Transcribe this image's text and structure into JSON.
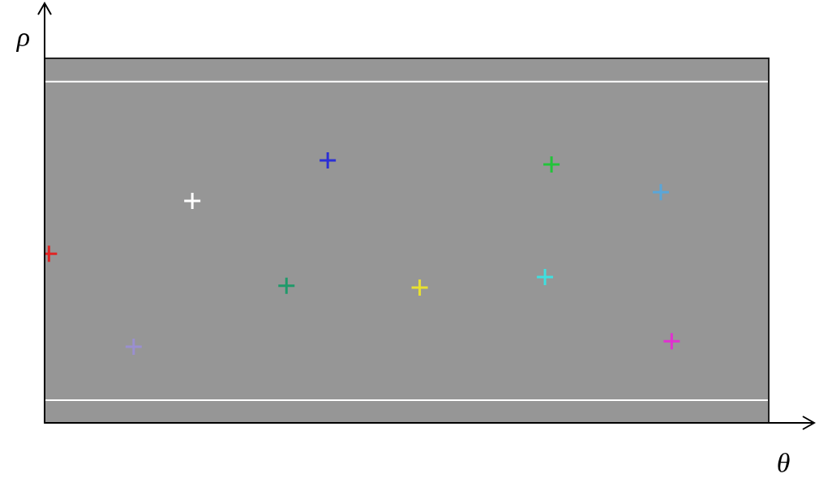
{
  "chart_data": {
    "type": "scatter",
    "x_label": "θ",
    "y_label": "ρ",
    "xlim": [
      0,
      100
    ],
    "ylim": [
      0,
      100
    ],
    "tick_labels": false,
    "grid": false,
    "marker": "cross",
    "points": [
      {
        "x": 39.1,
        "y": 72.0,
        "color": "#2b2fd6"
      },
      {
        "x": 70.0,
        "y": 70.9,
        "color": "#22c43a"
      },
      {
        "x": 20.4,
        "y": 60.9,
        "color": "#ffffff"
      },
      {
        "x": 85.1,
        "y": 63.3,
        "color": "#5aa6d8"
      },
      {
        "x": 0.6,
        "y": 46.4,
        "color": "#e02424"
      },
      {
        "x": 33.4,
        "y": 37.6,
        "color": "#1f9a6a"
      },
      {
        "x": 51.8,
        "y": 37.1,
        "color": "#e8e030"
      },
      {
        "x": 69.1,
        "y": 40.0,
        "color": "#3ee0e0"
      },
      {
        "x": 12.3,
        "y": 20.9,
        "color": "#9a8fd0"
      },
      {
        "x": 86.6,
        "y": 22.4,
        "color": "#e030d0"
      }
    ],
    "hlines": [
      {
        "y": 93.6,
        "color": "#ffffff"
      },
      {
        "y": 6.2,
        "color": "#ffffff"
      }
    ]
  }
}
